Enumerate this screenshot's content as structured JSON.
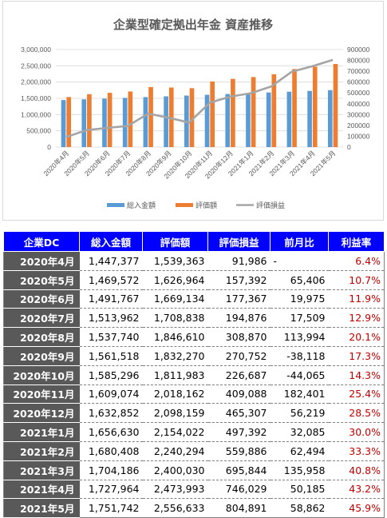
{
  "chart_data": {
    "type": "bar",
    "title": "企業型確定拠出年金 資産推移",
    "categories": [
      "2020年4月",
      "2020年5月",
      "2020年6月",
      "2020年7月",
      "2020年8月",
      "2020年9月",
      "2020年10月",
      "2020年11月",
      "2020年12月",
      "2021年1月",
      "2021年2月",
      "2021年3月",
      "2021年4月",
      "2021年5月"
    ],
    "series": [
      {
        "name": "総入金額",
        "type": "bar",
        "axis": "left",
        "color": "#5b9bd5",
        "values": [
          1447377,
          1469572,
          1491767,
          1513962,
          1537740,
          1561518,
          1585296,
          1609074,
          1632852,
          1656630,
          1680408,
          1704186,
          1727964,
          1751742
        ]
      },
      {
        "name": "評価額",
        "type": "bar",
        "axis": "left",
        "color": "#ed7d31",
        "values": [
          1539363,
          1626964,
          1669134,
          1708838,
          1846610,
          1832270,
          1811983,
          2018162,
          2098159,
          2154022,
          2240294,
          2400030,
          2473993,
          2556633
        ]
      },
      {
        "name": "評価損益",
        "type": "line",
        "axis": "right",
        "color": "#a5a5a5",
        "values": [
          91986,
          157392,
          177367,
          194876,
          308870,
          270752,
          226687,
          409088,
          465307,
          497392,
          559886,
          695844,
          746029,
          804891
        ]
      }
    ],
    "y_left": {
      "ticks": [
        "0",
        "500,000",
        "1,000,000",
        "1,500,000",
        "2,000,000",
        "2,500,000",
        "3,000,000"
      ],
      "ylim": [
        0,
        3000000
      ]
    },
    "y_right": {
      "ticks": [
        "0",
        "100000",
        "200000",
        "300000",
        "400000",
        "500000",
        "600000",
        "700000",
        "800000",
        "900000"
      ],
      "ylim": [
        0,
        900000
      ]
    },
    "legend_position": "bottom"
  },
  "table": {
    "headers": [
      "企業DC",
      "総入金額",
      "評価額",
      "評価損益",
      "前月比",
      "利益率"
    ],
    "rows": [
      [
        "2020年4月",
        "1,447,377",
        "1,539,363",
        "91,986",
        "-",
        "6.4%"
      ],
      [
        "2020年5月",
        "1,469,572",
        "1,626,964",
        "157,392",
        "65,406",
        "10.7%"
      ],
      [
        "2020年6月",
        "1,491,767",
        "1,669,134",
        "177,367",
        "19,975",
        "11.9%"
      ],
      [
        "2020年7月",
        "1,513,962",
        "1,708,838",
        "194,876",
        "17,509",
        "12.9%"
      ],
      [
        "2020年8月",
        "1,537,740",
        "1,846,610",
        "308,870",
        "113,994",
        "20.1%"
      ],
      [
        "2020年9月",
        "1,561,518",
        "1,832,270",
        "270,752",
        "-38,118",
        "17.3%"
      ],
      [
        "2020年10月",
        "1,585,296",
        "1,811,983",
        "226,687",
        "-44,065",
        "14.3%"
      ],
      [
        "2020年11月",
        "1,609,074",
        "2,018,162",
        "409,088",
        "182,401",
        "25.4%"
      ],
      [
        "2020年12月",
        "1,632,852",
        "2,098,159",
        "465,307",
        "56,219",
        "28.5%"
      ],
      [
        "2021年1月",
        "1,656,630",
        "2,154,022",
        "497,392",
        "32,085",
        "30.0%"
      ],
      [
        "2021年2月",
        "1,680,408",
        "2,240,294",
        "559,886",
        "62,494",
        "33.3%"
      ],
      [
        "2021年3月",
        "1,704,186",
        "2,400,030",
        "695,844",
        "135,958",
        "40.8%"
      ],
      [
        "2021年4月",
        "1,727,964",
        "2,473,993",
        "746,029",
        "50,185",
        "43.2%"
      ],
      [
        "2021年5月",
        "1,751,742",
        "2,556,633",
        "804,891",
        "58,862",
        "45.9%"
      ]
    ]
  }
}
